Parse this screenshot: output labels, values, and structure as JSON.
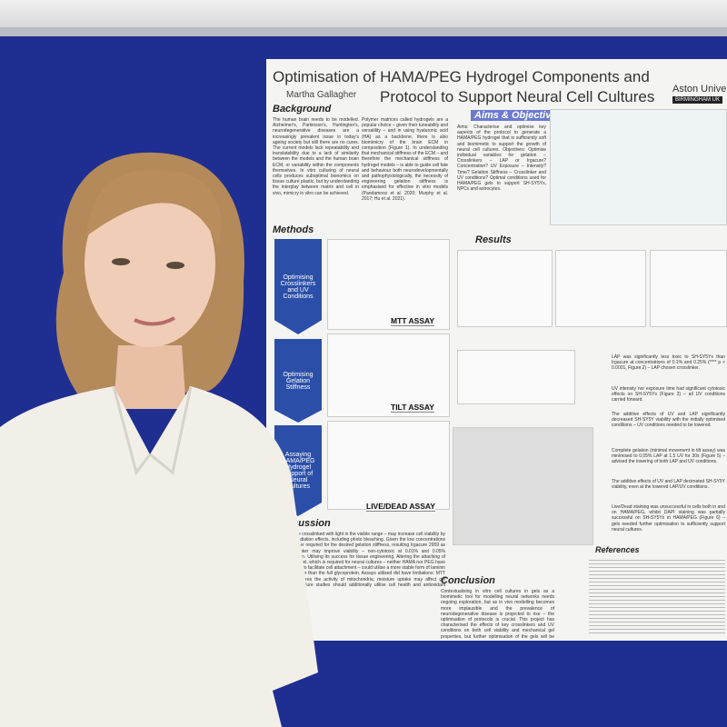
{
  "poster": {
    "title_line1": "Optimisation of HAMA/PEG Hydrogel Components and",
    "title_line2": "Protocol to Support Neural Cell Cultures",
    "author": "Martha Gallagher",
    "logo_name": "Aston University",
    "logo_sub": "BIRMINGHAM UK",
    "background": {
      "heading": "Background",
      "text1": "The human brain needs to be modelled. Alzheimer's, Parkinson's, Huntington's, neurodegenerative diseases are a increasingly prevalent issue in today's ageing society but still there are no cures. The current models lack repeatability and translatability due to a lack of similarity between the models and the human brain ECM, or variability within the components themselves. In vitro culturing of neural cells produces suboptimal bionomics on tissue culture plastic, but by understanding the interplay between matrix and cell in vivo, mimicry in vitro can be achieved.",
      "text2": "Polymer matrices called hydrogels are a popular choice – given their tuneability and versatility – and in using hyaluronic acid (HA) as a backbone, there is also biomimicry of the brain ECM in composition (Figure 1). In understanding that mechanical stiffness of the ECM – and therefore the mechanical stiffness of hydrogel models – is able to guide cell fate and behaviour both neurodevelopmentally and pathophysiologically, the necessity of engineering gelation stiffness is emphasised for effective in vitro models (Pandamooz et al. 2020; Murphy et al. 2017; Hu et al. 2021)."
    },
    "aims": {
      "heading": "Aims & Objectives",
      "text": "Aims: Characterise and optimise key aspects of the protocol to generate a HAMA/PEG hydrogel that is sufficiently soft and biomimetic to support the growth of neural cell cultures. Objectives: Optimise individual variables for gelation – Crosslinkers – LAP or Irgacure? Concentration? UV Exposure – Intensity? Time? Gelation Stiffness – Crosslinker and UV conditions? Optimal conditions used for HAMA/PEG gels to support SH-SY5Ys, NPCs and astrocytes."
    },
    "methods": {
      "heading": "Methods",
      "steps": [
        "Optimising Crosslinkers and UV Conditions",
        "Optimising Gelation Stiffness",
        "Assaying HAMA/PEG Hydrogel Support of Neural Cultures"
      ],
      "assays": [
        "MTT ASSAY",
        "TILT ASSAY",
        "LIVE/DEAD ASSAY"
      ]
    },
    "results": {
      "heading": "Results",
      "bullets": [
        "LAP was significantly less toxic to SH-SY5Ys than Irgacure at concentrations of 0.1% and 0.25% (**** p < 0.0001, Figure 2) – LAP chosen crosslinker.",
        "UV intensity nor exposure time had significant cytotoxic effects on SH-SY5Ys (Figure 3) – all UV conditions carried forward.",
        "The additive effects of UV and LAP significantly decreased SH-SY5Y viability with the initially optimised conditions – UV conditions needed to be lowered.",
        "Complete gelation (minimal movement in tilt assay) was minimised to 0.05% LAP at 1.5 UV for 30s (Figure 5) – advised the lowering of both LAP and UV conditions.",
        "The additive effects of UV and LAP decimated SH-SY5Y viability, even at the lowered LAP/UV conditions.",
        "Live/Dead staining was unsuccessful in cells both in and on HAMA/PEG, whilst DAPI staining was partially successful on SH-SY5Ys in HAMA/PEG (Figure 6) – gels needed further optimisation to sufficiently support neural cultures."
      ]
    },
    "discussion": {
      "heading": "Discussion",
      "text": "LAP can be crosslinked with light in the visible range – may increase cell viability by reducing radiation effects, including photo bleaching. Given the low concentrations of crosslinker required for the desired gelation stiffness, resulting Irgacure 2959 as the crosslinker may improve viability – non-cytotoxic at 0.01% and 0.05% concentration. Utilising its success for tissue engineering. Altering the attaching of cells to the gel, which is required for neural cultures – neither HAMA nor PEG have been shown to facilitate cell attachment – could utilise a more stable form of laminin or RGD rather than the full glycoprotein. Assays utilised did have limitations: MTT assay measures the activity of mitochondria; moisture uptake may affect gel stiffness – future studies should additionally utilise cell health and antioxidant levels."
    },
    "conclusion": {
      "heading": "Conclusion",
      "text": "Contextualising in vitro cell cultures in gels as a biomimetic tool for modelling neural networks needs ongoing exploration, but as in vivo modelling becomes more implausible and the prevalence of neurodegenerative disease is projected to rise – the optimisation of protocols is crucial. This project has characterised the effects of key crosslinkers and UV conditions on both cell viability and mechanical gel properties, but further optimisation of the gels will be required to support neural cell cultures."
    },
    "references": {
      "heading": "References"
    }
  }
}
